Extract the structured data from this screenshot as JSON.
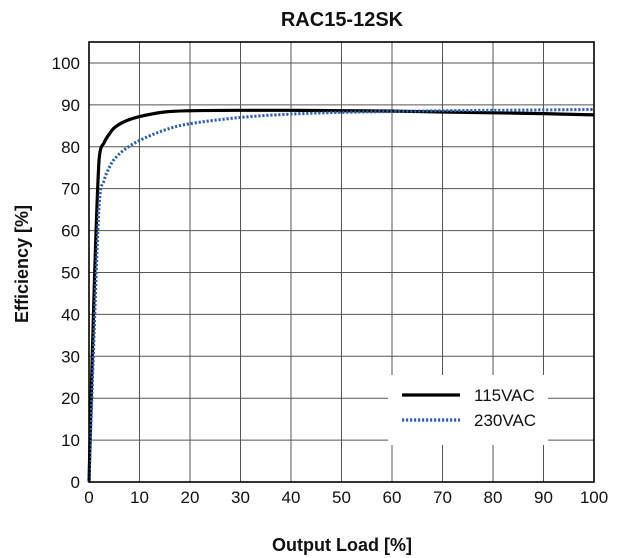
{
  "chart_data": {
    "type": "line",
    "title": "RAC15-12SK",
    "xlabel": "Output Load [%]",
    "ylabel": "Efficiency [%]",
    "xlim": [
      0,
      100
    ],
    "ylim": [
      0,
      105
    ],
    "xticks": [
      0,
      10,
      20,
      30,
      40,
      50,
      60,
      70,
      80,
      90,
      100
    ],
    "yticks": [
      0,
      10,
      20,
      30,
      40,
      50,
      60,
      70,
      80,
      90,
      100
    ],
    "grid": true,
    "legend_position": "bottom-right",
    "series": [
      {
        "name": "115VAC",
        "color": "#000000",
        "style": "solid",
        "x": [
          0,
          1,
          2,
          3,
          4,
          5,
          7,
          10,
          15,
          20,
          30,
          40,
          50,
          60,
          70,
          80,
          90,
          100
        ],
        "y": [
          0,
          45,
          77,
          81,
          83,
          84.5,
          86,
          87.2,
          88.3,
          88.6,
          88.7,
          88.7,
          88.6,
          88.5,
          88.3,
          88.1,
          87.9,
          87.6
        ]
      },
      {
        "name": "230VAC",
        "color": "#2f5fa8",
        "style": "dotted",
        "x": [
          0,
          1,
          2,
          3,
          4,
          5,
          7,
          10,
          15,
          20,
          30,
          40,
          50,
          60,
          70,
          80,
          90,
          100
        ],
        "y": [
          0,
          35,
          66,
          72,
          75,
          77,
          79.3,
          81.5,
          84,
          85.5,
          87,
          87.8,
          88.2,
          88.4,
          88.6,
          88.7,
          88.8,
          88.9
        ]
      }
    ]
  }
}
